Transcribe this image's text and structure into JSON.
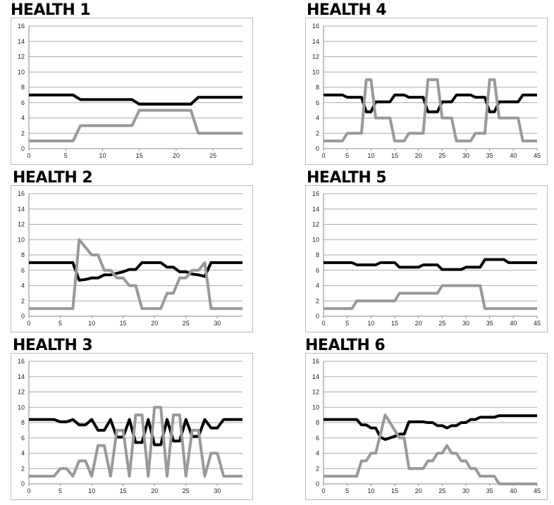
{
  "chart_data": [
    {
      "type": "line",
      "title": "HEALTH 1",
      "xlabel": "",
      "ylabel": "",
      "xlim": [
        0,
        29
      ],
      "ylim": [
        0,
        16
      ],
      "xticks": [
        0,
        5,
        10,
        15,
        20,
        25
      ],
      "yticks": [
        0,
        2,
        4,
        6,
        8,
        10,
        12,
        14,
        16
      ],
      "grid": "horizontal",
      "series": [
        {
          "color": "#000000",
          "values": [
            7,
            7,
            7,
            7,
            7,
            7,
            7,
            6.4,
            6.4,
            6.4,
            6.4,
            6.4,
            6.4,
            6.4,
            6.4,
            5.8,
            5.8,
            5.8,
            5.8,
            5.8,
            5.8,
            5.8,
            5.8,
            6.7,
            6.7,
            6.7,
            6.7,
            6.7,
            6.7,
            6.7
          ]
        },
        {
          "color": "#999999",
          "values": [
            1,
            1,
            1,
            1,
            1,
            1,
            1,
            3,
            3,
            3,
            3,
            3,
            3,
            3,
            3,
            5,
            5,
            5,
            5,
            5,
            5,
            5,
            5,
            2,
            2,
            2,
            2,
            2,
            2,
            2
          ]
        }
      ]
    },
    {
      "type": "line",
      "title": "HEALTH 4",
      "xlabel": "",
      "ylabel": "",
      "xlim": [
        0,
        45
      ],
      "ylim": [
        0,
        16
      ],
      "xticks": [
        0,
        5,
        10,
        15,
        20,
        25,
        30,
        35,
        40,
        45
      ],
      "yticks": [
        0,
        2,
        4,
        6,
        8,
        10,
        12,
        14,
        16
      ],
      "grid": "horizontal",
      "series": [
        {
          "color": "#000000",
          "values": [
            7,
            7,
            7,
            7,
            7,
            6.7,
            6.7,
            6.7,
            6.7,
            4.8,
            4.8,
            6.1,
            6.1,
            6.1,
            6.1,
            7,
            7,
            7,
            6.7,
            6.7,
            6.7,
            6.7,
            4.8,
            4.8,
            4.8,
            6.1,
            6.1,
            6.1,
            7,
            7,
            7,
            7,
            6.7,
            6.7,
            6.7,
            4.8,
            4.8,
            6.1,
            6.1,
            6.1,
            6.1,
            6.1,
            7,
            7,
            7,
            7
          ]
        },
        {
          "color": "#999999",
          "values": [
            1,
            1,
            1,
            1,
            1,
            2,
            2,
            2,
            2,
            9,
            9,
            4,
            4,
            4,
            4,
            1,
            1,
            1,
            2,
            2,
            2,
            2,
            9,
            9,
            9,
            4,
            4,
            4,
            1,
            1,
            1,
            1,
            2,
            2,
            2,
            9,
            9,
            4,
            4,
            4,
            4,
            4,
            1,
            1,
            1,
            1
          ]
        }
      ]
    },
    {
      "type": "line",
      "title": "HEALTH 2",
      "xlabel": "",
      "ylabel": "",
      "xlim": [
        0,
        34
      ],
      "ylim": [
        0,
        16
      ],
      "xticks": [
        0,
        5,
        10,
        15,
        20,
        25,
        30
      ],
      "yticks": [
        0,
        2,
        4,
        6,
        8,
        10,
        12,
        14,
        16
      ],
      "grid": "horizontal",
      "series": [
        {
          "color": "#000000",
          "values": [
            7,
            7,
            7,
            7,
            7,
            7,
            7,
            7,
            4.7,
            4.8,
            5,
            5,
            5.4,
            5.4,
            5.6,
            5.8,
            6.1,
            6.1,
            7,
            7,
            7,
            7,
            6.4,
            6.4,
            5.8,
            5.8,
            5.5,
            5.4,
            5.2,
            7,
            7,
            7,
            7,
            7,
            7
          ]
        },
        {
          "color": "#999999",
          "values": [
            1,
            1,
            1,
            1,
            1,
            1,
            1,
            1,
            10,
            9,
            8,
            8,
            6,
            6,
            5,
            5,
            4,
            4,
            1,
            1,
            1,
            1,
            3,
            3,
            5,
            5,
            6,
            6,
            7,
            1,
            1,
            1,
            1,
            1,
            1
          ]
        }
      ]
    },
    {
      "type": "line",
      "title": "HEALTH 5",
      "xlabel": "",
      "ylabel": "",
      "xlim": [
        0,
        45
      ],
      "ylim": [
        0,
        16
      ],
      "xticks": [
        0,
        5,
        10,
        15,
        20,
        25,
        30,
        35,
        40,
        45
      ],
      "yticks": [
        0,
        2,
        4,
        6,
        8,
        10,
        12,
        14,
        16
      ],
      "grid": "horizontal",
      "series": [
        {
          "color": "#000000",
          "values": [
            7,
            7,
            7,
            7,
            7,
            7,
            7,
            6.7,
            6.7,
            6.7,
            6.7,
            6.7,
            7,
            7,
            7,
            7,
            6.4,
            6.4,
            6.4,
            6.4,
            6.4,
            6.7,
            6.7,
            6.7,
            6.7,
            6.1,
            6.1,
            6.1,
            6.1,
            6.1,
            6.4,
            6.4,
            6.4,
            6.4,
            7.4,
            7.4,
            7.4,
            7.4,
            7.4,
            7,
            7,
            7,
            7,
            7,
            7,
            7
          ]
        },
        {
          "color": "#999999",
          "values": [
            1,
            1,
            1,
            1,
            1,
            1,
            1,
            2,
            2,
            2,
            2,
            2,
            2,
            2,
            2,
            2,
            3,
            3,
            3,
            3,
            3,
            3,
            3,
            3,
            3,
            4,
            4,
            4,
            4,
            4,
            4,
            4,
            4,
            4,
            1,
            1,
            1,
            1,
            1,
            1,
            1,
            1,
            1,
            1,
            1,
            1
          ]
        }
      ]
    },
    {
      "type": "line",
      "title": "HEALTH 3",
      "xlabel": "",
      "ylabel": "",
      "xlim": [
        0,
        34
      ],
      "ylim": [
        0,
        16
      ],
      "xticks": [
        0,
        5,
        10,
        15,
        20,
        25,
        30
      ],
      "yticks": [
        0,
        2,
        4,
        6,
        8,
        10,
        12,
        14,
        16
      ],
      "grid": "horizontal",
      "series": [
        {
          "color": "#000000",
          "values": [
            8.4,
            8.4,
            8.4,
            8.4,
            8.4,
            8.1,
            8.1,
            8.4,
            7.7,
            7.7,
            8.4,
            7,
            7,
            8.4,
            6.1,
            6.1,
            8.4,
            5.4,
            5.4,
            8.4,
            5.1,
            5.1,
            8.4,
            5.6,
            5.6,
            8.4,
            6.2,
            6.2,
            8.4,
            7.3,
            7.3,
            8.4,
            8.4,
            8.4,
            8.4
          ]
        },
        {
          "color": "#999999",
          "values": [
            1,
            1,
            1,
            1,
            1,
            2,
            2,
            1,
            3,
            3,
            1,
            5,
            5,
            1,
            7,
            7,
            1,
            9,
            9,
            1,
            10,
            10,
            1,
            9,
            9,
            1,
            7,
            7,
            1,
            4,
            4,
            1,
            1,
            1,
            1
          ]
        }
      ]
    },
    {
      "type": "line",
      "title": "HEALTH 6",
      "xlabel": "",
      "ylabel": "",
      "xlim": [
        0,
        45
      ],
      "ylim": [
        0,
        16
      ],
      "xticks": [
        0,
        5,
        10,
        15,
        20,
        25,
        30,
        35,
        40,
        45
      ],
      "yticks": [
        0,
        2,
        4,
        6,
        8,
        10,
        12,
        14,
        16
      ],
      "grid": "horizontal",
      "series": [
        {
          "color": "#000000",
          "values": [
            8.4,
            8.4,
            8.4,
            8.4,
            8.4,
            8.4,
            8.4,
            8.4,
            7.7,
            7.7,
            7.3,
            7.3,
            6.1,
            5.8,
            6,
            6.2,
            6.5,
            6.5,
            8.1,
            8.1,
            8.1,
            8.1,
            8,
            8,
            7.6,
            7.6,
            7.3,
            7.6,
            7.6,
            8,
            8,
            8.4,
            8.4,
            8.7,
            8.7,
            8.7,
            8.7,
            8.9,
            8.9,
            8.9,
            8.9,
            8.9,
            8.9,
            8.9,
            8.9,
            8.9
          ]
        },
        {
          "color": "#999999",
          "values": [
            1,
            1,
            1,
            1,
            1,
            1,
            1,
            1,
            3,
            3,
            4,
            4,
            6.5,
            9,
            8,
            7,
            6,
            6,
            2,
            2,
            2,
            2,
            3,
            3,
            4,
            4,
            5,
            4,
            4,
            3,
            3,
            2,
            2,
            1,
            1,
            1,
            1,
            0,
            0,
            0,
            0,
            0,
            0,
            0,
            0,
            0
          ]
        }
      ]
    }
  ]
}
